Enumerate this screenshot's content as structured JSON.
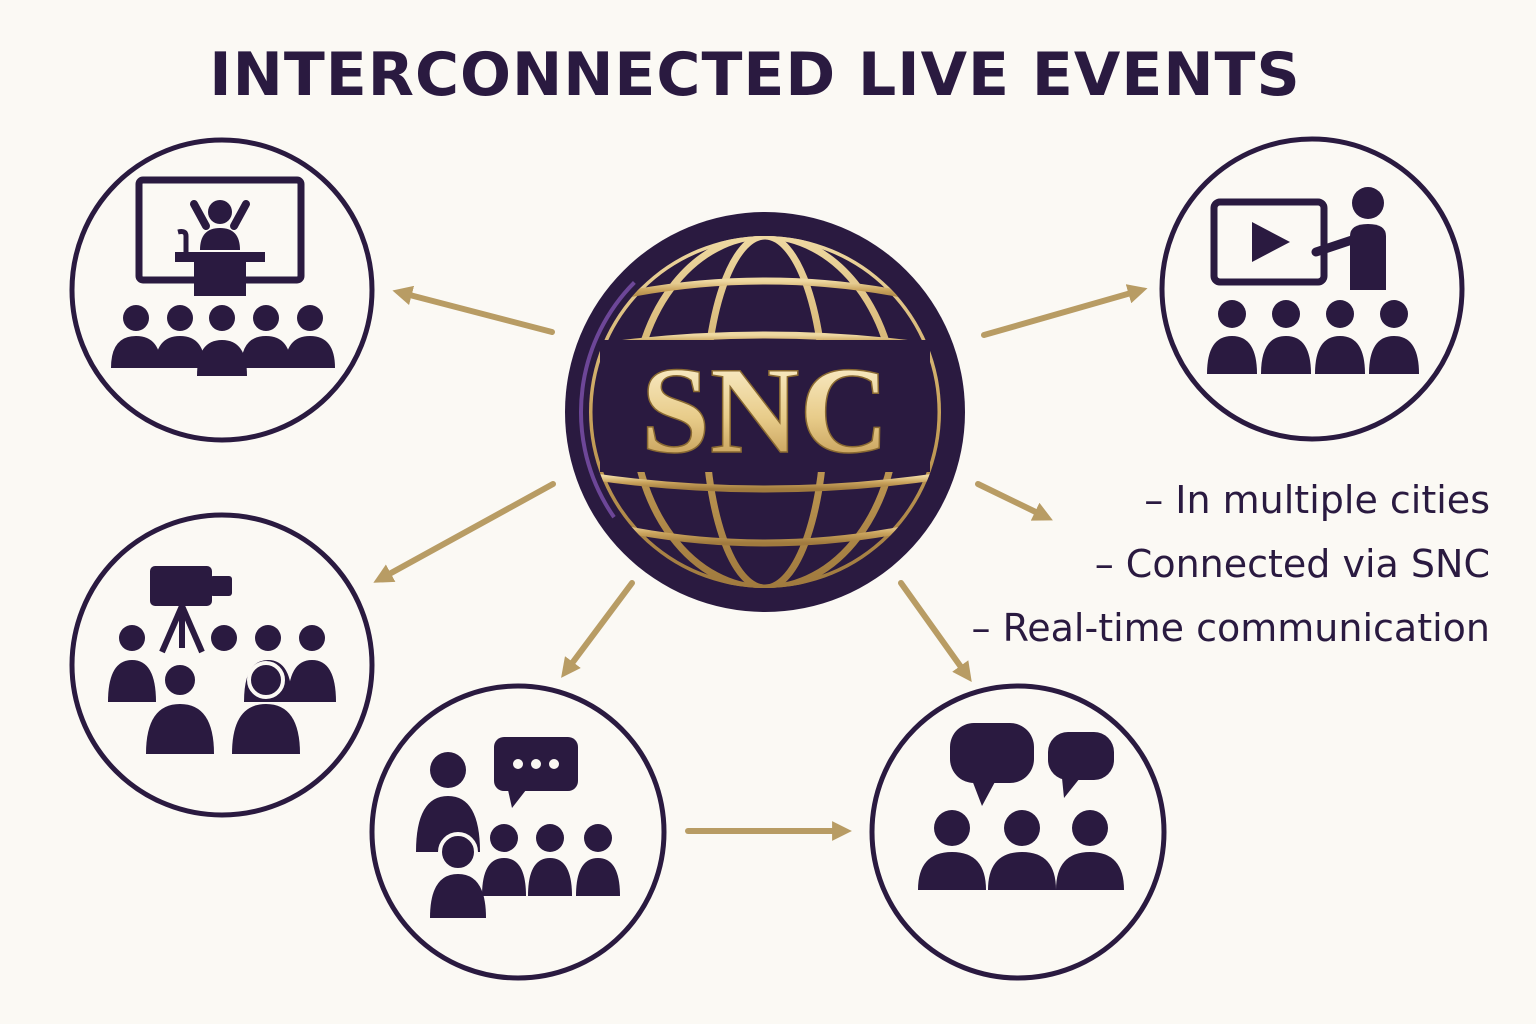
{
  "title": "INTERCONNECTED LIVE EVENTS",
  "hub": {
    "label": "SNC",
    "icon": "globe-icon"
  },
  "bullets": [
    "– In multiple cities",
    "– Connected via SNC",
    "– Real-time communication"
  ],
  "colors": {
    "dark": "#2a1a40",
    "gold": "#b89c64",
    "accent": "#a46be0",
    "background": "#fbf9f4"
  },
  "nodes": [
    {
      "id": "lecture",
      "icon": "lecture-audience-icon"
    },
    {
      "id": "video",
      "icon": "video-presentation-icon"
    },
    {
      "id": "broadcast",
      "icon": "camera-broadcast-icon"
    },
    {
      "id": "discussion",
      "icon": "group-discussion-icon"
    },
    {
      "id": "conversation",
      "icon": "chat-group-icon"
    }
  ]
}
